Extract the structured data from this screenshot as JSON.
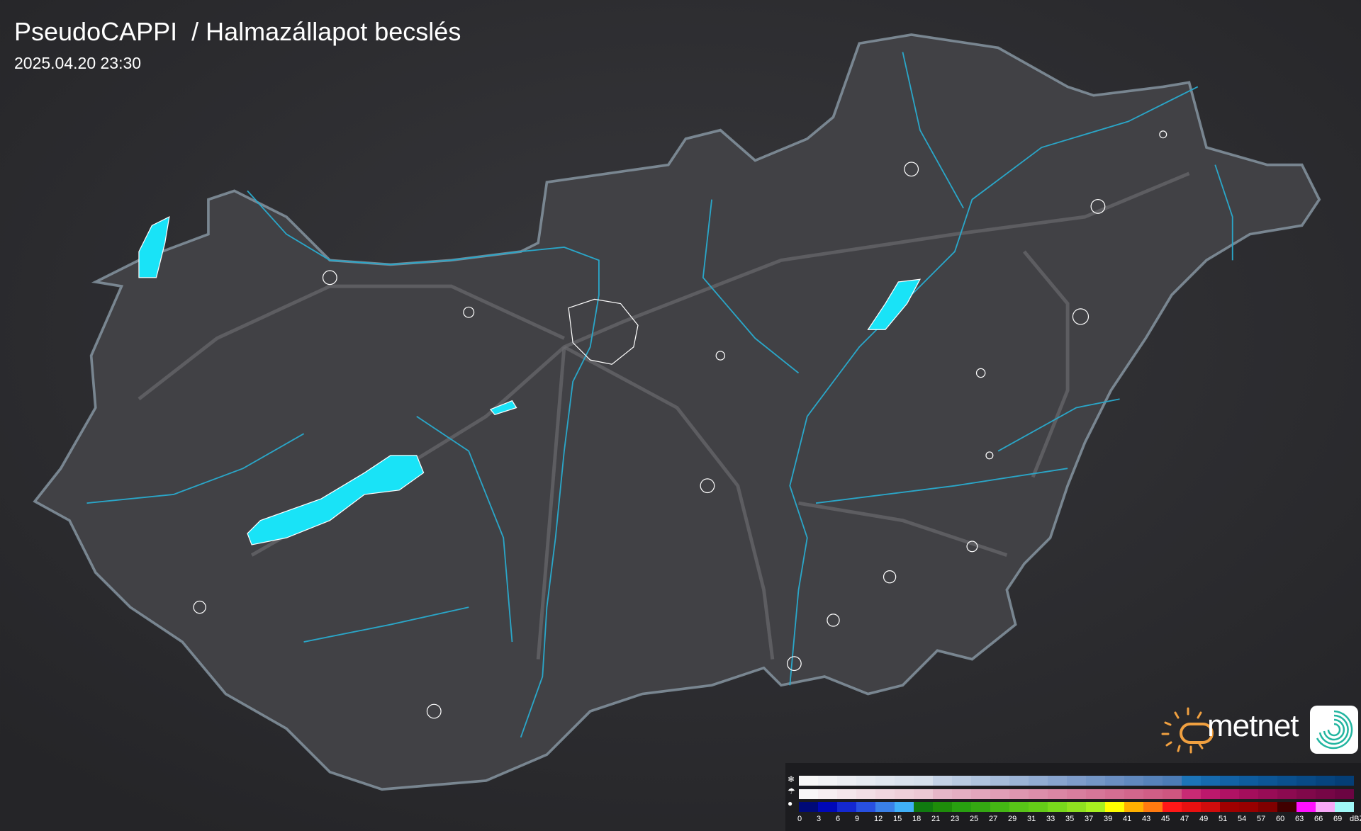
{
  "header": {
    "title": "PseudoCAPPI  / Halmazállapot becslés",
    "timestamp": "2025.04.20 23:30"
  },
  "map": {
    "background": "#2b2b2e",
    "country_fill": "#414145",
    "border_color": "#8a9aa6",
    "river_color": "#2aa6c8",
    "lake_color": "#19e3f7",
    "road_color": "#6a6a6e"
  },
  "logo": {
    "text": "metnet",
    "sun_color": "#f0a040",
    "swirl_color": "#22b5a0"
  },
  "legend": {
    "icons": [
      "snowflake-icon",
      "mixed-icon",
      "droplet-icon"
    ],
    "labels": [
      "0",
      "3",
      "6",
      "9",
      "12",
      "15",
      "18",
      "21",
      "23",
      "25",
      "27",
      "29",
      "31",
      "33",
      "35",
      "37",
      "39",
      "41",
      "43",
      "45",
      "47",
      "49",
      "51",
      "54",
      "57",
      "60",
      "63",
      "66",
      "69"
    ],
    "unit": "dBZ",
    "snow_colors": [
      "#f8f8f8",
      "#f2f3f6",
      "#eceef3",
      "#e6eaf1",
      "#e0e6ef",
      "#dae2ed",
      "#d6e0ec",
      "#c4d2e6",
      "#bacbe2",
      "#b0c4de",
      "#a6bcda",
      "#9cb4d6",
      "#92acd2",
      "#88a4ce",
      "#7e9cca",
      "#7496c6",
      "#6a8ec2",
      "#6088be",
      "#5682ba",
      "#4c7cb6",
      "#1c74b8",
      "#166aae",
      "#1262a6",
      "#0e5c9e",
      "#0c5696",
      "#0a508e",
      "#084a86",
      "#06447e",
      "#043e76"
    ],
    "mixed_colors": [
      "#f8f6f7",
      "#f6eef1",
      "#f4e6eb",
      "#f2dee5",
      "#f0d6df",
      "#eecfd9",
      "#ecc8d4",
      "#e6b6c8",
      "#e4aec2",
      "#e2a6bc",
      "#e09eb6",
      "#de96b0",
      "#dc8eaa",
      "#da86a4",
      "#d87e9e",
      "#d67698",
      "#d46e92",
      "#d2668c",
      "#d05e86",
      "#ce5680",
      "#c82a74",
      "#bc186c",
      "#b01264",
      "#a40e5c",
      "#980c56",
      "#8c0a50",
      "#80084a",
      "#760646",
      "#6c0442"
    ],
    "rain_colors": [
      "#000a78",
      "#0008b8",
      "#1428d0",
      "#2850e0",
      "#3a80e8",
      "#40b0f8",
      "#107a10",
      "#1e8c0a",
      "#28a010",
      "#34a812",
      "#44b814",
      "#58c418",
      "#64cc18",
      "#78d81c",
      "#90e020",
      "#a8f020",
      "#ffff00",
      "#ffb000",
      "#ff7a10",
      "#ff1818",
      "#e81010",
      "#d00c0c",
      "#a00000",
      "#980000",
      "#800000",
      "#400000",
      "#ff10ff",
      "#f8a8f8",
      "#a0f8f8"
    ]
  }
}
